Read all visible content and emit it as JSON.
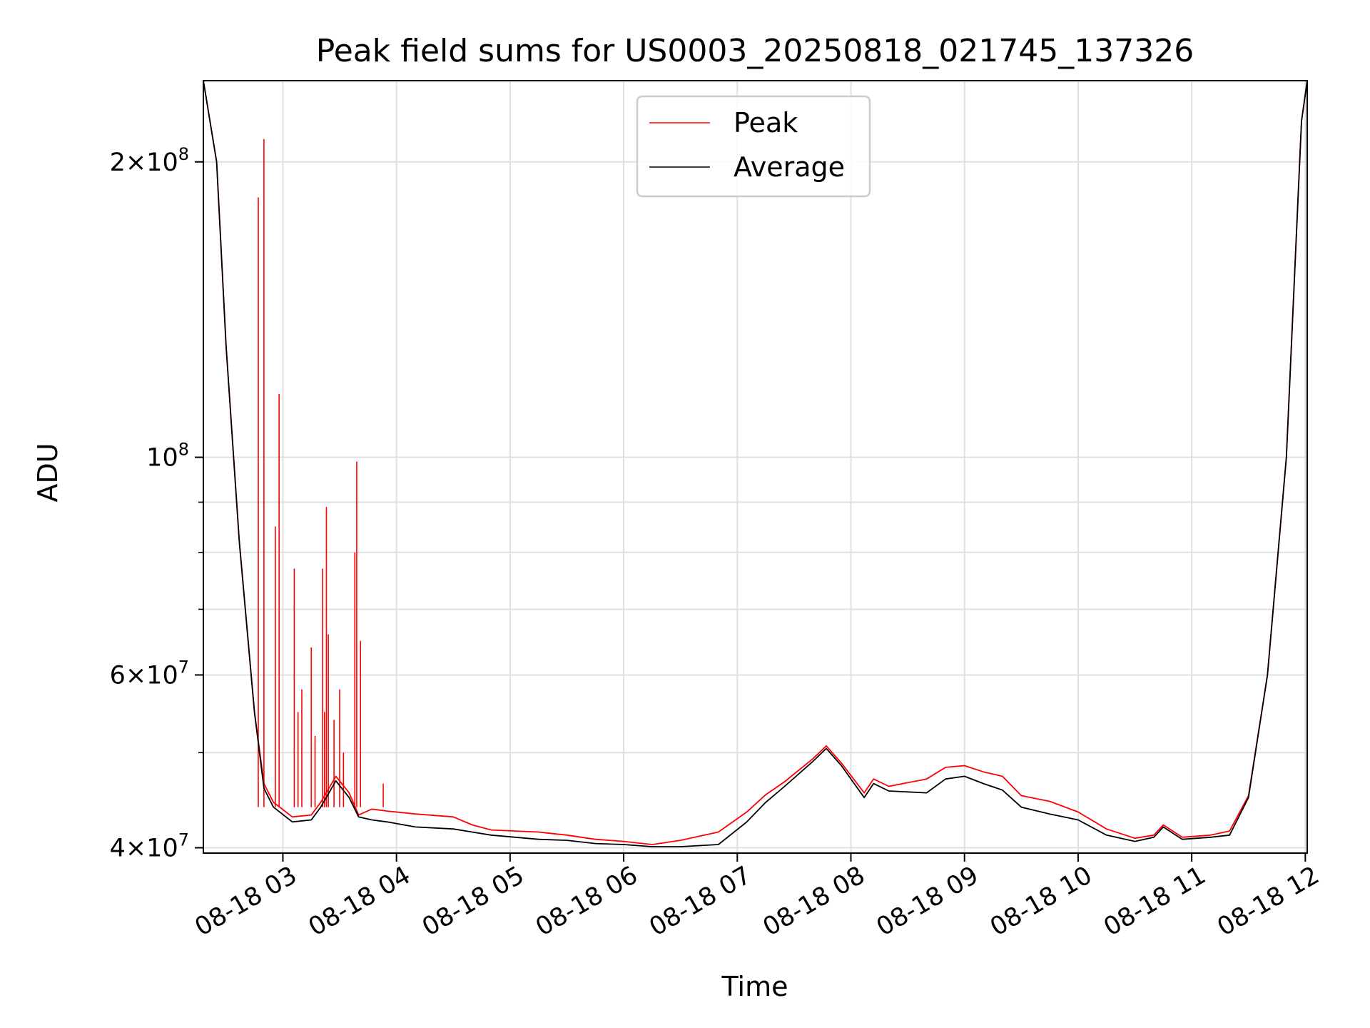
{
  "chart_data": {
    "type": "line",
    "title": "Peak field sums for US0003_20250818_021745_137326",
    "xlabel": "Time",
    "ylabel": "ADU",
    "y_scale": "log",
    "ylim": [
      39500000,
      242000000
    ],
    "xlim": [
      "2025-08-18T02:18",
      "2025-08-18T12:01"
    ],
    "grid": true,
    "legend_position": "upper center",
    "x_tick_labels": [
      "08-18 03",
      "08-18 04",
      "08-18 05",
      "08-18 06",
      "08-18 07",
      "08-18 08",
      "08-18 09",
      "08-18 10",
      "08-18 11",
      "08-18 12"
    ],
    "x_tick_times": [
      "2025-08-18T03:00",
      "2025-08-18T04:00",
      "2025-08-18T05:00",
      "2025-08-18T06:00",
      "2025-08-18T07:00",
      "2025-08-18T08:00",
      "2025-08-18T09:00",
      "2025-08-18T10:00",
      "2025-08-18T11:00",
      "2025-08-18T12:00"
    ],
    "y_ticks": [
      {
        "value": 40000000,
        "mantissa": "4",
        "exponent": "7"
      },
      {
        "value": 60000000,
        "mantissa": "6",
        "exponent": "7"
      },
      {
        "value": 100000000,
        "mantissa": "",
        "exponent": "8"
      },
      {
        "value": 200000000,
        "mantissa": "2",
        "exponent": "8"
      }
    ],
    "y_minor_ticks": [
      50000000,
      70000000,
      80000000,
      90000000,
      300000000
    ],
    "series": [
      {
        "name": "Average",
        "color": "#000000",
        "x": [
          "2025-08-18T02:18",
          "2025-08-18T02:25",
          "2025-08-18T02:30",
          "2025-08-18T02:37",
          "2025-08-18T02:45",
          "2025-08-18T02:50",
          "2025-08-18T02:55",
          "2025-08-18T03:05",
          "2025-08-18T03:15",
          "2025-08-18T03:20",
          "2025-08-18T03:28",
          "2025-08-18T03:35",
          "2025-08-18T03:40",
          "2025-08-18T03:47",
          "2025-08-18T03:55",
          "2025-08-18T04:10",
          "2025-08-18T04:30",
          "2025-08-18T04:40",
          "2025-08-18T04:50",
          "2025-08-18T05:15",
          "2025-08-18T05:30",
          "2025-08-18T05:45",
          "2025-08-18T06:00",
          "2025-08-18T06:15",
          "2025-08-18T06:30",
          "2025-08-18T06:50",
          "2025-08-18T07:05",
          "2025-08-18T07:15",
          "2025-08-18T07:25",
          "2025-08-18T07:40",
          "2025-08-18T07:47",
          "2025-08-18T07:55",
          "2025-08-18T08:07",
          "2025-08-18T08:12",
          "2025-08-18T08:20",
          "2025-08-18T08:40",
          "2025-08-18T08:50",
          "2025-08-18T09:00",
          "2025-08-18T09:10",
          "2025-08-18T09:20",
          "2025-08-18T09:30",
          "2025-08-18T09:45",
          "2025-08-18T10:00",
          "2025-08-18T10:15",
          "2025-08-18T10:30",
          "2025-08-18T10:40",
          "2025-08-18T10:45",
          "2025-08-18T10:55",
          "2025-08-18T11:10",
          "2025-08-18T11:20",
          "2025-08-18T11:30",
          "2025-08-18T11:40",
          "2025-08-18T11:50",
          "2025-08-18T11:58",
          "2025-08-18T12:01"
        ],
        "y": [
          242000000,
          200000000,
          130000000,
          82000000,
          55000000,
          46000000,
          44000000,
          42500000,
          42700000,
          44000000,
          46800000,
          45000000,
          43000000,
          42700000,
          42500000,
          42000000,
          41800000,
          41500000,
          41200000,
          40800000,
          40700000,
          40400000,
          40300000,
          40100000,
          40100000,
          40300000,
          42500000,
          44500000,
          46200000,
          49000000,
          50500000,
          48500000,
          45000000,
          46500000,
          45700000,
          45500000,
          47000000,
          47300000,
          46500000,
          45800000,
          44000000,
          43300000,
          42700000,
          41200000,
          40600000,
          41000000,
          42000000,
          40800000,
          41000000,
          41200000,
          45000000,
          60000000,
          100000000,
          220000000,
          242000000
        ]
      },
      {
        "name": "Peak",
        "color": "#ff0000",
        "x": [
          "2025-08-18T02:18",
          "2025-08-18T02:25",
          "2025-08-18T02:30",
          "2025-08-18T02:37",
          "2025-08-18T02:45",
          "2025-08-18T02:50",
          "2025-08-18T02:55",
          "2025-08-18T03:05",
          "2025-08-18T03:15",
          "2025-08-18T03:20",
          "2025-08-18T03:28",
          "2025-08-18T03:35",
          "2025-08-18T03:40",
          "2025-08-18T03:47",
          "2025-08-18T03:55",
          "2025-08-18T04:10",
          "2025-08-18T04:30",
          "2025-08-18T04:40",
          "2025-08-18T04:50",
          "2025-08-18T05:15",
          "2025-08-18T05:30",
          "2025-08-18T05:45",
          "2025-08-18T06:00",
          "2025-08-18T06:15",
          "2025-08-18T06:30",
          "2025-08-18T06:50",
          "2025-08-18T07:05",
          "2025-08-18T07:15",
          "2025-08-18T07:25",
          "2025-08-18T07:40",
          "2025-08-18T07:47",
          "2025-08-18T07:55",
          "2025-08-18T08:07",
          "2025-08-18T08:12",
          "2025-08-18T08:20",
          "2025-08-18T08:40",
          "2025-08-18T08:50",
          "2025-08-18T09:00",
          "2025-08-18T09:10",
          "2025-08-18T09:20",
          "2025-08-18T09:30",
          "2025-08-18T09:45",
          "2025-08-18T10:00",
          "2025-08-18T10:15",
          "2025-08-18T10:30",
          "2025-08-18T10:40",
          "2025-08-18T10:45",
          "2025-08-18T10:55",
          "2025-08-18T11:10",
          "2025-08-18T11:20",
          "2025-08-18T11:30",
          "2025-08-18T11:40",
          "2025-08-18T11:50",
          "2025-08-18T11:58",
          "2025-08-18T12:01"
        ],
        "y": [
          242000000,
          200000000,
          130000000,
          82000000,
          55000000,
          46500000,
          44500000,
          43000000,
          43200000,
          44500000,
          47300000,
          45500000,
          43200000,
          43800000,
          43600000,
          43300000,
          43000000,
          42200000,
          41700000,
          41500000,
          41200000,
          40800000,
          40600000,
          40300000,
          40700000,
          41500000,
          43500000,
          45300000,
          46700000,
          49300000,
          50800000,
          48800000,
          45500000,
          47000000,
          46200000,
          47000000,
          48300000,
          48500000,
          47800000,
          47300000,
          45200000,
          44600000,
          43500000,
          41800000,
          40900000,
          41200000,
          42200000,
          41000000,
          41200000,
          41600000,
          45200000,
          60000000,
          100000000,
          220000000,
          242000000
        ],
        "spikes": [
          {
            "x": "2025-08-18T02:47",
            "y": 184000000
          },
          {
            "x": "2025-08-18T02:50",
            "y": 211000000
          },
          {
            "x": "2025-08-18T02:56",
            "y": 85000000
          },
          {
            "x": "2025-08-18T02:58",
            "y": 116000000
          },
          {
            "x": "2025-08-18T03:06",
            "y": 77000000
          },
          {
            "x": "2025-08-18T03:08",
            "y": 55000000
          },
          {
            "x": "2025-08-18T03:10",
            "y": 58000000
          },
          {
            "x": "2025-08-18T03:15",
            "y": 64000000
          },
          {
            "x": "2025-08-18T03:17",
            "y": 52000000
          },
          {
            "x": "2025-08-18T03:21",
            "y": 77000000
          },
          {
            "x": "2025-08-18T03:22",
            "y": 55000000
          },
          {
            "x": "2025-08-18T03:23",
            "y": 89000000
          },
          {
            "x": "2025-08-18T03:24",
            "y": 66000000
          },
          {
            "x": "2025-08-18T03:27",
            "y": 54000000
          },
          {
            "x": "2025-08-18T03:30",
            "y": 58000000
          },
          {
            "x": "2025-08-18T03:32",
            "y": 50000000
          },
          {
            "x": "2025-08-18T03:38",
            "y": 80000000
          },
          {
            "x": "2025-08-18T03:39",
            "y": 99000000
          },
          {
            "x": "2025-08-18T03:41",
            "y": 65000000
          },
          {
            "x": "2025-08-18T03:53",
            "y": 46500000
          }
        ]
      }
    ]
  }
}
